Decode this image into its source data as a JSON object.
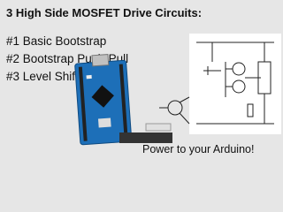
{
  "header": {
    "title": "3 High Side MOSFET Drive Circuits:"
  },
  "list": {
    "items": [
      "#1 Basic Bootstrap",
      "#2 Bootstrap Push-Pull",
      "#3 Level Shifter IC"
    ]
  },
  "footer": {
    "text": "Power to your Arduino!"
  }
}
